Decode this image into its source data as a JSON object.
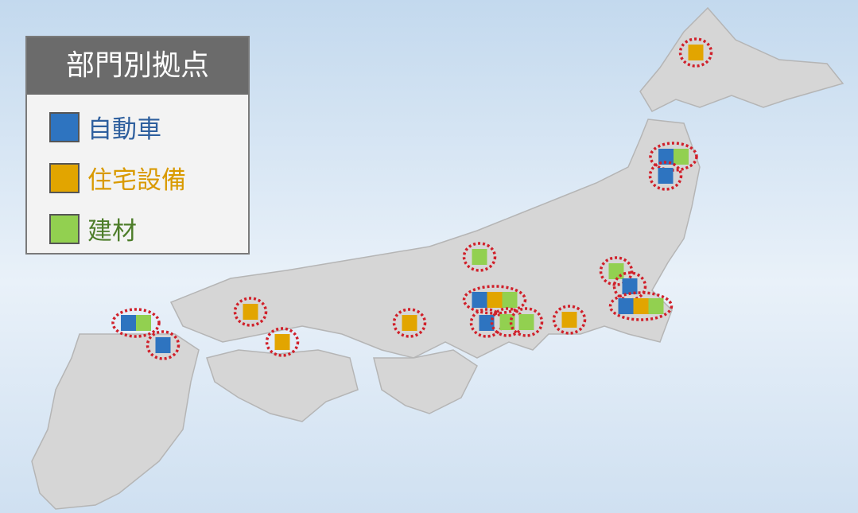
{
  "legend": {
    "title": "部門別拠点",
    "items": [
      {
        "name": "自動車",
        "color": "#2e74c0",
        "text_color": "#2e5f9e"
      },
      {
        "name": "住宅設備",
        "color": "#e2a500",
        "text_color": "#d99a00"
      },
      {
        "name": "建材",
        "color": "#92d050",
        "text_color": "#4d7d2a"
      }
    ]
  }
}
